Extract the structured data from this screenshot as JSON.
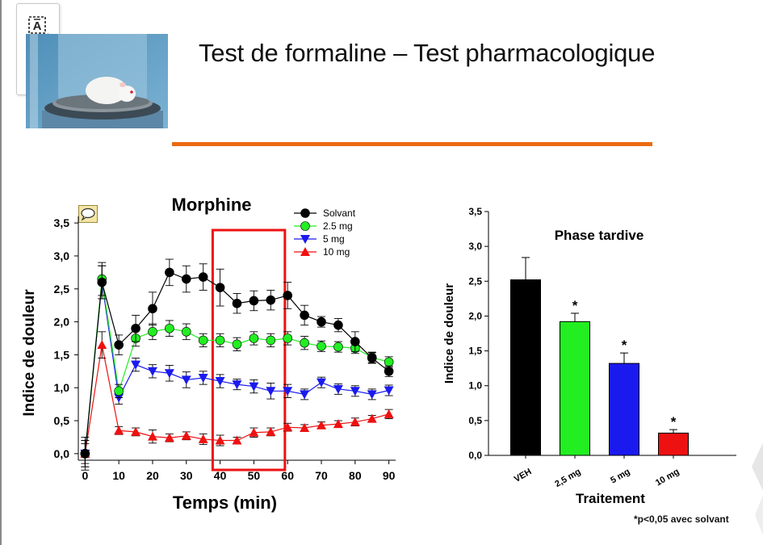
{
  "slide": {
    "title": "Test de formaline – Test pharmacologique",
    "accent_color": "#ec6a12"
  },
  "toolbar": {
    "items": [
      {
        "icon": "text-box-icon"
      },
      {
        "icon": "pen-edit-icon"
      }
    ]
  },
  "image": {
    "subject": "rat on formalin test platform"
  },
  "footnote": "*p<0,05 avec solvant",
  "chart_data": [
    {
      "type": "line",
      "title": "Morphine",
      "xlabel": "Temps (min)",
      "ylabel": "Indice de douleur",
      "xlim": [
        -2,
        92
      ],
      "ylim": [
        -0.1,
        3.6
      ],
      "x_ticks": [
        0,
        10,
        20,
        30,
        40,
        50,
        60,
        70,
        80,
        90
      ],
      "x_tick_labels": [
        "0",
        "10",
        "20",
        "30",
        "40",
        "50",
        "60",
        "70",
        "80",
        "90"
      ],
      "y_ticks": [
        0,
        0.5,
        1,
        1.5,
        2,
        2.5,
        3,
        3.5
      ],
      "y_tick_labels": [
        "0,0",
        "0,5",
        "1,0",
        "1,5",
        "2,0",
        "2,5",
        "3,0",
        "3,5"
      ],
      "legend_position": "top-right",
      "highlight_range": [
        39,
        58
      ],
      "x": [
        0,
        5,
        10,
        15,
        20,
        25,
        30,
        35,
        40,
        45,
        50,
        55,
        60,
        65,
        70,
        75,
        80,
        85,
        90
      ],
      "series": [
        {
          "name": "Solvant",
          "color": "#000000",
          "marker": "circle",
          "values": [
            0.0,
            2.6,
            1.65,
            1.9,
            2.2,
            2.75,
            2.65,
            2.68,
            2.52,
            2.28,
            2.32,
            2.33,
            2.4,
            2.1,
            2.0,
            1.95,
            1.7,
            1.45,
            1.25
          ],
          "errors": [
            0.25,
            0.25,
            0.15,
            0.2,
            0.25,
            0.2,
            0.2,
            0.2,
            0.28,
            0.15,
            0.15,
            0.15,
            0.2,
            0.15,
            0.08,
            0.1,
            0.15,
            0.08,
            0.08
          ]
        },
        {
          "name": "2.5 mg",
          "color": "#22ee22",
          "marker": "circle",
          "values": [
            0.0,
            2.65,
            0.95,
            1.75,
            1.85,
            1.9,
            1.85,
            1.72,
            1.72,
            1.66,
            1.75,
            1.72,
            1.75,
            1.68,
            1.63,
            1.62,
            1.6,
            1.46,
            1.39
          ],
          "errors": [
            0.2,
            0.25,
            0.1,
            0.12,
            0.12,
            0.12,
            0.12,
            0.1,
            0.1,
            0.1,
            0.1,
            0.1,
            0.1,
            0.1,
            0.08,
            0.08,
            0.08,
            0.08,
            0.08
          ]
        },
        {
          "name": "5 mg",
          "color": "#1a1aee",
          "marker": "triangle-down",
          "values": [
            0.0,
            2.6,
            0.85,
            1.35,
            1.25,
            1.22,
            1.12,
            1.15,
            1.1,
            1.05,
            1.02,
            0.95,
            0.95,
            0.9,
            1.08,
            0.98,
            0.95,
            0.9,
            0.96
          ],
          "errors": [
            0.2,
            0.25,
            0.1,
            0.1,
            0.1,
            0.12,
            0.12,
            0.1,
            0.1,
            0.08,
            0.1,
            0.12,
            0.1,
            0.08,
            0.08,
            0.08,
            0.08,
            0.08,
            0.08
          ]
        },
        {
          "name": "10 mg",
          "color": "#ee1111",
          "marker": "triangle-up",
          "values": [
            0.0,
            1.65,
            0.35,
            0.33,
            0.26,
            0.24,
            0.27,
            0.22,
            0.2,
            0.2,
            0.32,
            0.33,
            0.4,
            0.39,
            0.43,
            0.45,
            0.48,
            0.53,
            0.6
          ],
          "errors": [
            0.15,
            0.2,
            0.06,
            0.06,
            0.1,
            0.06,
            0.06,
            0.08,
            0.08,
            0.05,
            0.07,
            0.06,
            0.06,
            0.05,
            0.05,
            0.05,
            0.06,
            0.05,
            0.07
          ]
        }
      ]
    },
    {
      "type": "bar",
      "title": "Phase tardive",
      "xlabel": "Traitement",
      "ylabel": "Indice de douleur",
      "ylim": [
        0,
        3.5
      ],
      "y_ticks": [
        0,
        0.5,
        1,
        1.5,
        2,
        2.5,
        3,
        3.5
      ],
      "y_tick_labels": [
        "0,0",
        "0,5",
        "1,0",
        "1,5",
        "2,0",
        "2,5",
        "3,0",
        "3,5"
      ],
      "categories": [
        "VEH",
        "2,5 mg",
        "5 mg",
        "10 mg"
      ],
      "values": [
        2.52,
        1.92,
        1.32,
        0.32
      ],
      "errors": [
        0.32,
        0.12,
        0.15,
        0.05
      ],
      "colors": [
        "#000000",
        "#22ee22",
        "#1a1aee",
        "#ee1111"
      ],
      "significance": [
        "",
        "*",
        "*",
        "*"
      ]
    }
  ]
}
